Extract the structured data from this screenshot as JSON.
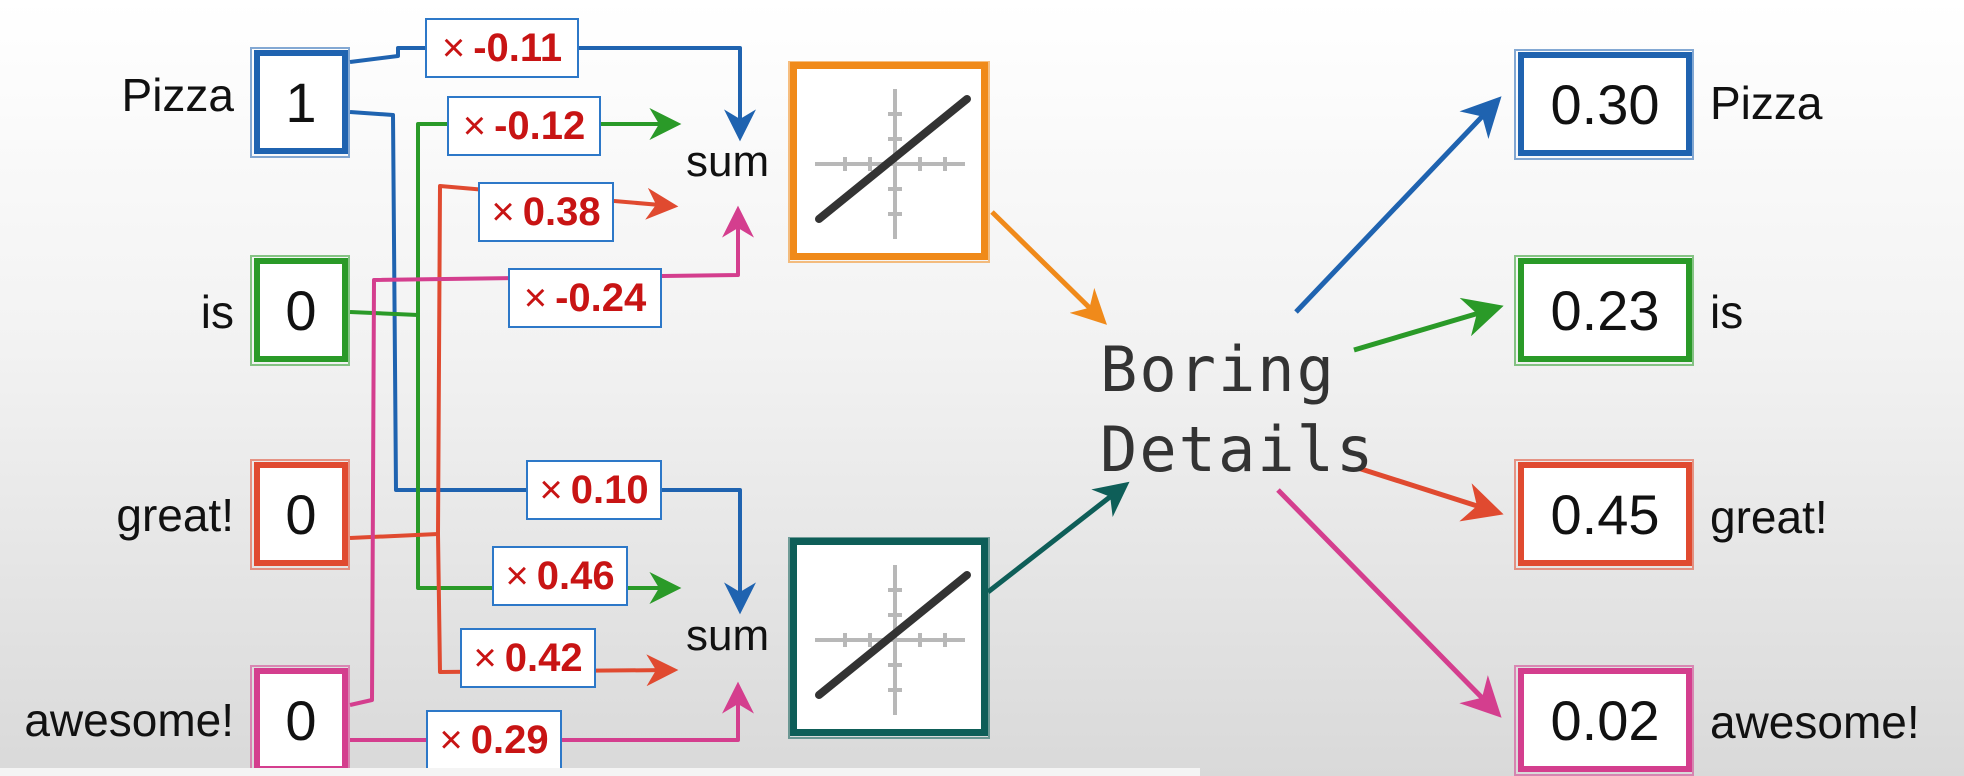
{
  "inputs": [
    {
      "word": "Pizza",
      "value": "1",
      "color": "#1f63b0"
    },
    {
      "word": "is",
      "value": "0",
      "color": "#2a9a28"
    },
    {
      "word": "great!",
      "value": "0",
      "color": "#e04a30"
    },
    {
      "word": "awesome!",
      "value": "0",
      "color": "#d43e8e"
    }
  ],
  "weights_top": [
    "-0.11",
    "-0.12",
    "0.38",
    "-0.24"
  ],
  "weights_bottom": [
    "0.10",
    "0.46",
    "0.42",
    "0.29"
  ],
  "times_symbol": "×",
  "sum_label": "sum",
  "activation_colors": [
    "#f08a1a",
    "#0e5e58"
  ],
  "boring": {
    "line1": "Boring",
    "line2": "Details"
  },
  "outputs": [
    {
      "value": "0.30",
      "word": "Pizza",
      "color": "#1f63b0"
    },
    {
      "value": "0.23",
      "word": "is",
      "color": "#2a9a28"
    },
    {
      "value": "0.45",
      "word": "great!",
      "color": "#e04a30"
    },
    {
      "value": "0.02",
      "word": "awesome!",
      "color": "#d43e8e"
    }
  ]
}
